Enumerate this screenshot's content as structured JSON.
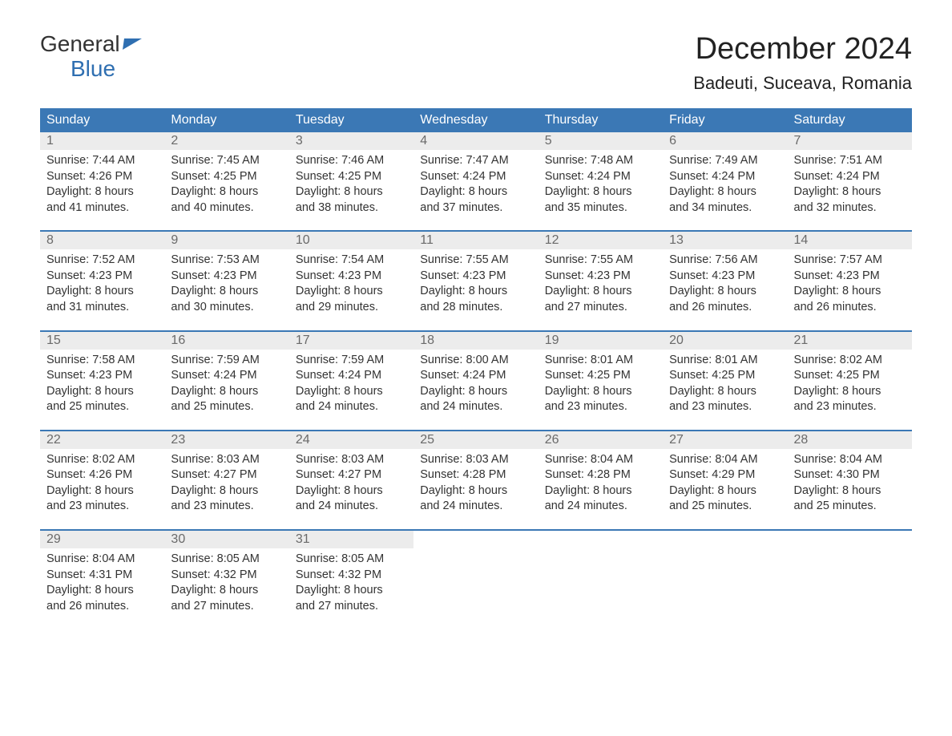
{
  "logo": {
    "line1": "General",
    "line2": "Blue"
  },
  "title": "December 2024",
  "location": "Badeuti, Suceava, Romania",
  "colors": {
    "header_bg": "#3b78b5",
    "header_text": "#ffffff",
    "daynum_bg": "#ececec",
    "daynum_text": "#6a6a6a",
    "body_text": "#333333",
    "accent": "#2f6fb1",
    "page_bg": "#ffffff"
  },
  "typography": {
    "title_fontsize": 38,
    "location_fontsize": 22,
    "header_fontsize": 16,
    "daynum_fontsize": 16,
    "cell_fontsize": 14.5,
    "font_family": "Arial"
  },
  "layout": {
    "columns": 7,
    "rows": 5,
    "col_width_pct": 14.28
  },
  "day_headers": [
    "Sunday",
    "Monday",
    "Tuesday",
    "Wednesday",
    "Thursday",
    "Friday",
    "Saturday"
  ],
  "labels": {
    "sunrise": "Sunrise:",
    "sunset": "Sunset:",
    "daylight": "Daylight:"
  },
  "weeks": [
    [
      {
        "n": "1",
        "sunrise": "7:44 AM",
        "sunset": "4:26 PM",
        "daylight1": "8 hours",
        "daylight2": "and 41 minutes."
      },
      {
        "n": "2",
        "sunrise": "7:45 AM",
        "sunset": "4:25 PM",
        "daylight1": "8 hours",
        "daylight2": "and 40 minutes."
      },
      {
        "n": "3",
        "sunrise": "7:46 AM",
        "sunset": "4:25 PM",
        "daylight1": "8 hours",
        "daylight2": "and 38 minutes."
      },
      {
        "n": "4",
        "sunrise": "7:47 AM",
        "sunset": "4:24 PM",
        "daylight1": "8 hours",
        "daylight2": "and 37 minutes."
      },
      {
        "n": "5",
        "sunrise": "7:48 AM",
        "sunset": "4:24 PM",
        "daylight1": "8 hours",
        "daylight2": "and 35 minutes."
      },
      {
        "n": "6",
        "sunrise": "7:49 AM",
        "sunset": "4:24 PM",
        "daylight1": "8 hours",
        "daylight2": "and 34 minutes."
      },
      {
        "n": "7",
        "sunrise": "7:51 AM",
        "sunset": "4:24 PM",
        "daylight1": "8 hours",
        "daylight2": "and 32 minutes."
      }
    ],
    [
      {
        "n": "8",
        "sunrise": "7:52 AM",
        "sunset": "4:23 PM",
        "daylight1": "8 hours",
        "daylight2": "and 31 minutes."
      },
      {
        "n": "9",
        "sunrise": "7:53 AM",
        "sunset": "4:23 PM",
        "daylight1": "8 hours",
        "daylight2": "and 30 minutes."
      },
      {
        "n": "10",
        "sunrise": "7:54 AM",
        "sunset": "4:23 PM",
        "daylight1": "8 hours",
        "daylight2": "and 29 minutes."
      },
      {
        "n": "11",
        "sunrise": "7:55 AM",
        "sunset": "4:23 PM",
        "daylight1": "8 hours",
        "daylight2": "and 28 minutes."
      },
      {
        "n": "12",
        "sunrise": "7:55 AM",
        "sunset": "4:23 PM",
        "daylight1": "8 hours",
        "daylight2": "and 27 minutes."
      },
      {
        "n": "13",
        "sunrise": "7:56 AM",
        "sunset": "4:23 PM",
        "daylight1": "8 hours",
        "daylight2": "and 26 minutes."
      },
      {
        "n": "14",
        "sunrise": "7:57 AM",
        "sunset": "4:23 PM",
        "daylight1": "8 hours",
        "daylight2": "and 26 minutes."
      }
    ],
    [
      {
        "n": "15",
        "sunrise": "7:58 AM",
        "sunset": "4:23 PM",
        "daylight1": "8 hours",
        "daylight2": "and 25 minutes."
      },
      {
        "n": "16",
        "sunrise": "7:59 AM",
        "sunset": "4:24 PM",
        "daylight1": "8 hours",
        "daylight2": "and 25 minutes."
      },
      {
        "n": "17",
        "sunrise": "7:59 AM",
        "sunset": "4:24 PM",
        "daylight1": "8 hours",
        "daylight2": "and 24 minutes."
      },
      {
        "n": "18",
        "sunrise": "8:00 AM",
        "sunset": "4:24 PM",
        "daylight1": "8 hours",
        "daylight2": "and 24 minutes."
      },
      {
        "n": "19",
        "sunrise": "8:01 AM",
        "sunset": "4:25 PM",
        "daylight1": "8 hours",
        "daylight2": "and 23 minutes."
      },
      {
        "n": "20",
        "sunrise": "8:01 AM",
        "sunset": "4:25 PM",
        "daylight1": "8 hours",
        "daylight2": "and 23 minutes."
      },
      {
        "n": "21",
        "sunrise": "8:02 AM",
        "sunset": "4:25 PM",
        "daylight1": "8 hours",
        "daylight2": "and 23 minutes."
      }
    ],
    [
      {
        "n": "22",
        "sunrise": "8:02 AM",
        "sunset": "4:26 PM",
        "daylight1": "8 hours",
        "daylight2": "and 23 minutes."
      },
      {
        "n": "23",
        "sunrise": "8:03 AM",
        "sunset": "4:27 PM",
        "daylight1": "8 hours",
        "daylight2": "and 23 minutes."
      },
      {
        "n": "24",
        "sunrise": "8:03 AM",
        "sunset": "4:27 PM",
        "daylight1": "8 hours",
        "daylight2": "and 24 minutes."
      },
      {
        "n": "25",
        "sunrise": "8:03 AM",
        "sunset": "4:28 PM",
        "daylight1": "8 hours",
        "daylight2": "and 24 minutes."
      },
      {
        "n": "26",
        "sunrise": "8:04 AM",
        "sunset": "4:28 PM",
        "daylight1": "8 hours",
        "daylight2": "and 24 minutes."
      },
      {
        "n": "27",
        "sunrise": "8:04 AM",
        "sunset": "4:29 PM",
        "daylight1": "8 hours",
        "daylight2": "and 25 minutes."
      },
      {
        "n": "28",
        "sunrise": "8:04 AM",
        "sunset": "4:30 PM",
        "daylight1": "8 hours",
        "daylight2": "and 25 minutes."
      }
    ],
    [
      {
        "n": "29",
        "sunrise": "8:04 AM",
        "sunset": "4:31 PM",
        "daylight1": "8 hours",
        "daylight2": "and 26 minutes."
      },
      {
        "n": "30",
        "sunrise": "8:05 AM",
        "sunset": "4:32 PM",
        "daylight1": "8 hours",
        "daylight2": "and 27 minutes."
      },
      {
        "n": "31",
        "sunrise": "8:05 AM",
        "sunset": "4:32 PM",
        "daylight1": "8 hours",
        "daylight2": "and 27 minutes."
      },
      null,
      null,
      null,
      null
    ]
  ]
}
